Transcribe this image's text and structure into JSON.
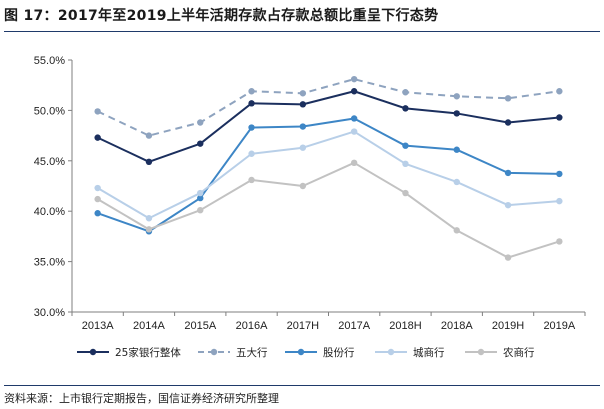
{
  "header": {
    "title": "图 17：2017年至2019上半年活期存款占存款总额比重呈下行态势"
  },
  "footer": {
    "source": "资料来源：上市银行定期报告，国信证券经济研究所整理"
  },
  "chart_data": {
    "type": "line",
    "title": "",
    "xlabel": "",
    "ylabel": "",
    "categories": [
      "2013A",
      "2014A",
      "2015A",
      "2016A",
      "2017H",
      "2017A",
      "2018H",
      "2018A",
      "2019H",
      "2019A"
    ],
    "ylim": [
      30.0,
      55.0
    ],
    "yticks": [
      "30.0%",
      "35.0%",
      "40.0%",
      "45.0%",
      "50.0%",
      "55.0%"
    ],
    "grid": false,
    "legend_position": "bottom",
    "series": [
      {
        "name": "25家银行整体",
        "color": "#1b2f5e",
        "dash": "solid",
        "values": [
          47.3,
          44.9,
          46.7,
          50.7,
          50.6,
          51.9,
          50.2,
          49.7,
          48.8,
          49.3
        ]
      },
      {
        "name": "五大行",
        "color": "#8ea3bf",
        "dash": "dashed",
        "values": [
          49.9,
          47.5,
          48.8,
          51.9,
          51.7,
          53.1,
          51.8,
          51.4,
          51.2,
          51.9
        ]
      },
      {
        "name": "股份行",
        "color": "#3d86c6",
        "dash": "solid",
        "values": [
          39.8,
          38.0,
          41.3,
          48.3,
          48.4,
          49.2,
          46.5,
          46.1,
          43.8,
          43.7
        ]
      },
      {
        "name": "城商行",
        "color": "#b8cfe8",
        "dash": "solid",
        "values": [
          42.3,
          39.3,
          41.8,
          45.7,
          46.3,
          47.9,
          44.7,
          42.9,
          40.6,
          41.0
        ]
      },
      {
        "name": "农商行",
        "color": "#c2c2c2",
        "dash": "solid",
        "values": [
          41.2,
          38.2,
          40.1,
          43.1,
          42.5,
          44.8,
          41.8,
          38.1,
          35.4,
          37.0
        ]
      }
    ]
  }
}
